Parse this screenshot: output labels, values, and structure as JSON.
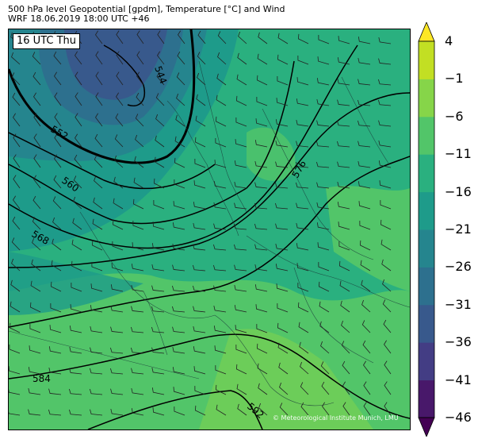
{
  "title": {
    "line1": "500 hPa level Geopotential [gpdm], Temperature [°C] and Wind",
    "line2": "WRF 18.06.2019 18:00 UTC +46"
  },
  "time_label": "16 UTC Thu",
  "credit": "© Meteorological Institute Munich, LMU",
  "contour_labels": [
    "544",
    "552",
    "560",
    "568",
    "576",
    "584",
    "592"
  ],
  "colorbar": {
    "ticks": [
      "4",
      "−1",
      "−6",
      "−11",
      "−16",
      "−21",
      "−26",
      "−31",
      "−36",
      "−41",
      "−46"
    ],
    "colors": [
      "#440154",
      "#48186a",
      "#433d84",
      "#38598c",
      "#2d708e",
      "#25858e",
      "#1e9b8a",
      "#2ab07f",
      "#52c569",
      "#86d549",
      "#c2df23",
      "#fde725"
    ]
  }
}
